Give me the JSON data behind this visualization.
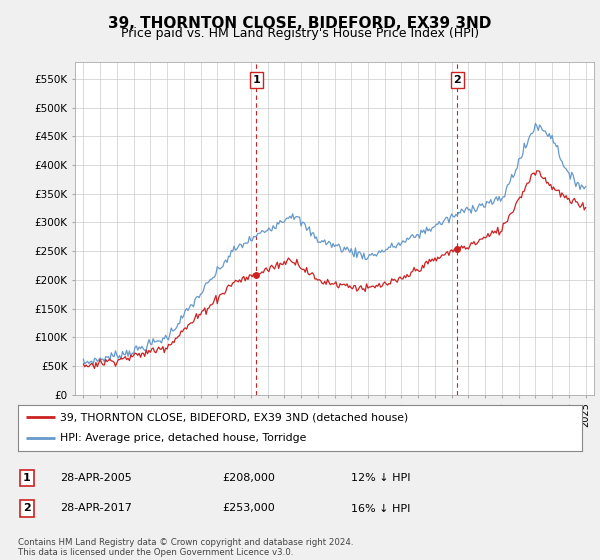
{
  "title": "39, THORNTON CLOSE, BIDEFORD, EX39 3ND",
  "subtitle": "Price paid vs. HM Land Registry's House Price Index (HPI)",
  "legend_line1": "39, THORNTON CLOSE, BIDEFORD, EX39 3ND (detached house)",
  "legend_line2": "HPI: Average price, detached house, Torridge",
  "annotation1_date": "28-APR-2005",
  "annotation1_price": "£208,000",
  "annotation1_hpi": "12% ↓ HPI",
  "annotation2_date": "28-APR-2017",
  "annotation2_price": "£253,000",
  "annotation2_hpi": "16% ↓ HPI",
  "footer": "Contains HM Land Registry data © Crown copyright and database right 2024.\nThis data is licensed under the Open Government Licence v3.0.",
  "hpi_color": "#6699cc",
  "price_color": "#cc2222",
  "vline_color": "#cc2222",
  "marker1_x": 2005.33,
  "marker1_y": 208000,
  "marker2_x": 2017.33,
  "marker2_y": 253000,
  "ylim_min": 0,
  "ylim_max": 580000,
  "xlim_min": 1994.5,
  "xlim_max": 2025.5,
  "yticks": [
    0,
    50000,
    100000,
    150000,
    200000,
    250000,
    300000,
    350000,
    400000,
    450000,
    500000,
    550000
  ],
  "ytick_labels": [
    "£0",
    "£50K",
    "£100K",
    "£150K",
    "£200K",
    "£250K",
    "£300K",
    "£350K",
    "£400K",
    "£450K",
    "£500K",
    "£550K"
  ],
  "background_color": "#f0f0f0",
  "plot_bg_color": "#ffffff",
  "grid_color": "#cccccc",
  "title_fontsize": 11,
  "subtitle_fontsize": 9
}
